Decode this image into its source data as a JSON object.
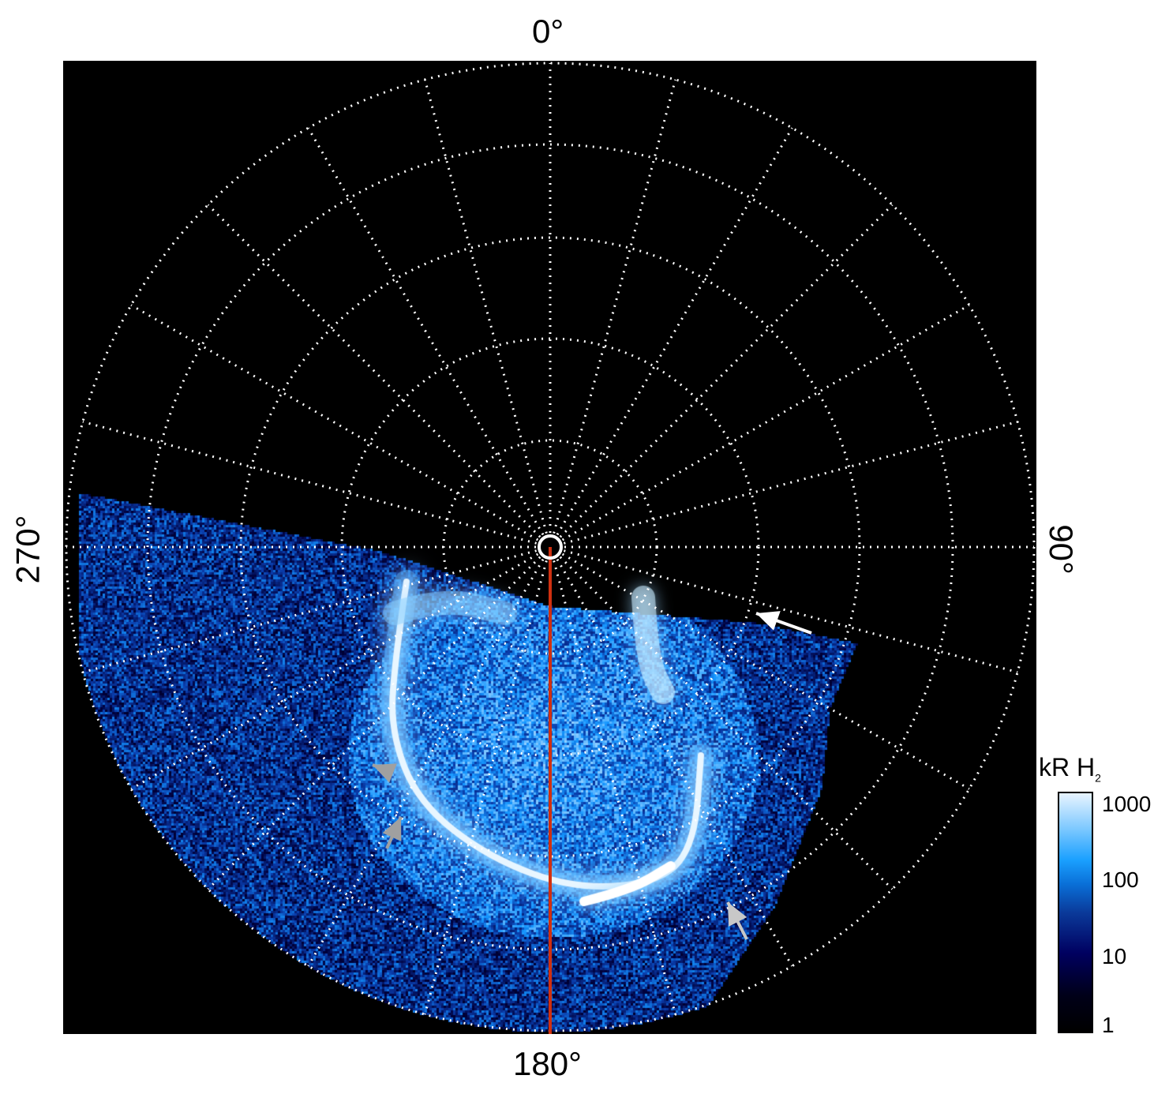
{
  "chart_data": {
    "type": "heatmap",
    "projection": "polar",
    "angle_labels": {
      "top": "0°",
      "right": "90°",
      "bottom": "180°",
      "left": "270°"
    },
    "meridian_step_deg": 15,
    "colatitude_circles": 5,
    "grid": "dotted white",
    "highlight_meridian_deg": 180,
    "highlight_color": "#d03010",
    "colorbar": {
      "label": "kR H",
      "label_subscript": "2",
      "scale": "log",
      "range": [
        1,
        1000
      ],
      "ticks": [
        "1000",
        "100",
        "10",
        "1"
      ],
      "colors": [
        "#000000",
        "#000060",
        "#0a70d8",
        "#1aa0ff",
        "#e8f4ff"
      ],
      "placement": "right"
    },
    "annotations": [
      {
        "type": "arrow",
        "color": "#ffffff"
      },
      {
        "type": "arrow",
        "color": "#a0a0a0"
      },
      {
        "type": "arrow",
        "color": "#a0a0a0"
      },
      {
        "type": "arrow",
        "color": "#c8c8c8"
      }
    ]
  }
}
